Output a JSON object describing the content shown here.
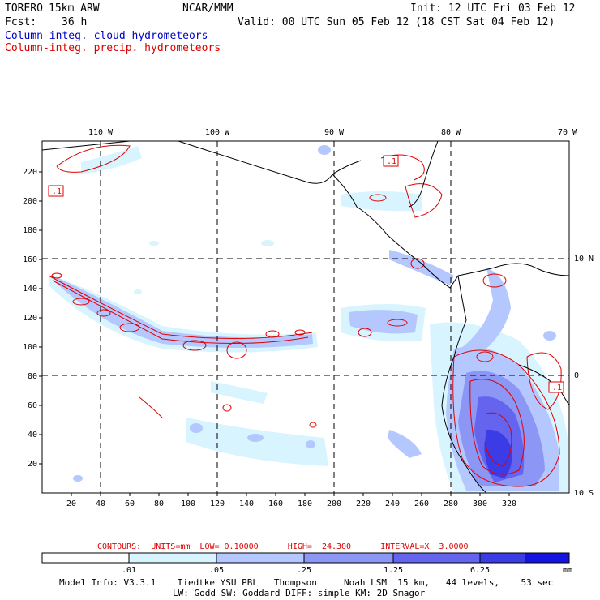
{
  "header": {
    "model": "TORERO",
    "resolution": "15km ARW",
    "center": "NCAR/MMM",
    "init": "Init: 12 UTC Fri 03 Feb 12",
    "fcst_label": "Fcst:",
    "fcst_hours": "36 h",
    "valid": "Valid: 00 UTC Sun 05 Feb 12 (18 CST Sat 04 Feb 12)",
    "field_blue": "Column-integ. cloud hydrometeors",
    "field_red": "Column-integ. precip. hydrometeors"
  },
  "map": {
    "lon_labels": [
      "110 W",
      "100 W",
      "90 W",
      "80 W",
      "70 W"
    ],
    "lat_labels_right": [
      "10 N",
      "0",
      "10 S"
    ],
    "x_ticks": [
      "20",
      "40",
      "60",
      "80",
      "100",
      "120",
      "140",
      "160",
      "180",
      "200",
      "220",
      "240",
      "260",
      "280",
      "300",
      "320"
    ],
    "y_ticks": [
      "20",
      "40",
      "60",
      "80",
      "100",
      "120",
      "140",
      "160",
      "180",
      "200",
      "220"
    ],
    "contour_labels": [
      ".1",
      ".1",
      ".1"
    ]
  },
  "contours_info": {
    "text": "CONTOURS:  UNITS=mm  LOW= 0.10000      HIGH=  24.300      INTERVAL=X  3.0000"
  },
  "colorbar": {
    "labels": [
      ".01",
      ".05",
      ".25",
      "1.25",
      "6.25"
    ],
    "units": "mm",
    "colors": [
      "#ffffff",
      "#d8f4ff",
      "#b4c8ff",
      "#8c96f5",
      "#6464ee",
      "#3c3ce6",
      "#1414e0"
    ]
  },
  "footer": {
    "line1": "Model Info: V3.3.1    Tiedtke YSU PBL   Thompson     Noah LSM  15 km,   44 levels,    53 sec",
    "line2": "LW: Godd SW: Goddard DIFF: simple KM: 2D Smagor"
  }
}
